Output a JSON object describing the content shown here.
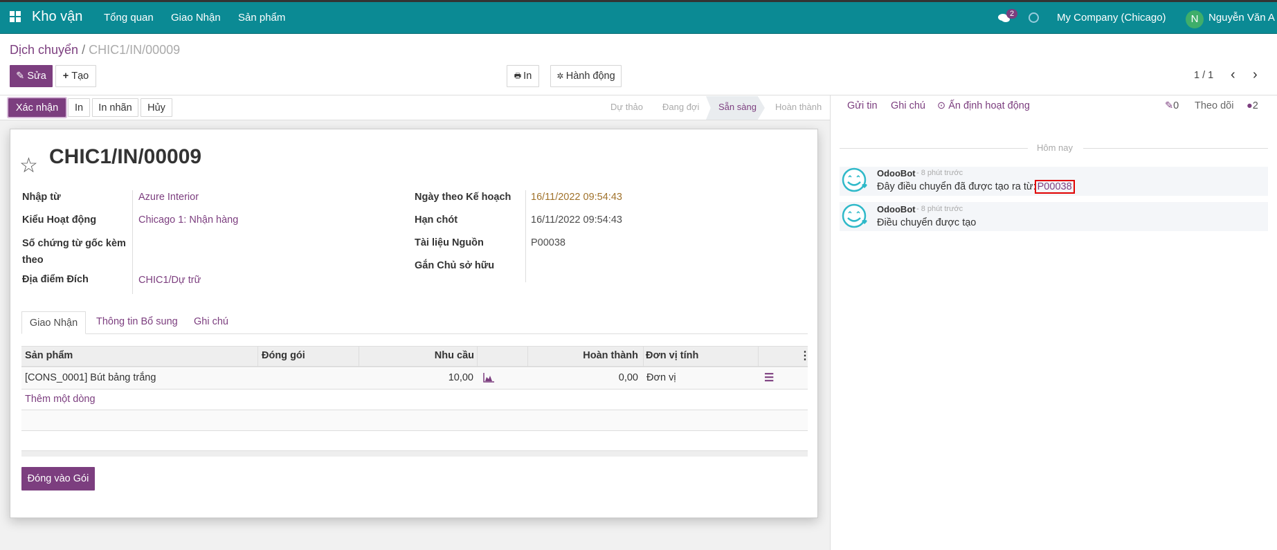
{
  "topbar": {
    "app_name": "Kho vận",
    "menu": [
      "Tổng quan",
      "Giao Nhận",
      "Sản phẩm"
    ],
    "messages_count": "2",
    "company": "My Company (Chicago)",
    "user_initial": "N",
    "user_name": "Nguyễn Văn A"
  },
  "breadcrumb": {
    "parent": "Dịch chuyển",
    "separator": "/",
    "current": "CHIC1/IN/00009"
  },
  "control": {
    "edit": "Sửa",
    "create": "Tạo",
    "print": "In",
    "action": "Hành động",
    "pager": "1 / 1"
  },
  "statusbar": {
    "buttons": [
      "Xác nhận",
      "In",
      "In nhãn",
      "Hủy"
    ],
    "stages": [
      "Dự thảo",
      "Đang đợi",
      "Sẵn sàng",
      "Hoàn thành"
    ],
    "active_stage": "Sẵn sàng"
  },
  "form": {
    "title": "CHIC1/IN/00009",
    "left_fields": [
      {
        "label": "Nhập từ",
        "value": "Azure Interior"
      },
      {
        "label": "Kiểu Hoạt động",
        "value": "Chicago 1: Nhận hàng"
      },
      {
        "label": "Số chứng từ gốc kèm theo",
        "value": ""
      },
      {
        "label": "Địa điểm Đích",
        "value": "CHIC1/Dự trữ"
      }
    ],
    "right_fields": [
      {
        "label": "Ngày theo Kế hoạch",
        "value": "16/11/2022 09:54:43"
      },
      {
        "label": "Hạn chót",
        "value": "16/11/2022 09:54:43"
      },
      {
        "label": "Tài liệu Nguồn",
        "value": "P00038"
      },
      {
        "label": "Gắn Chủ sở hữu",
        "value": ""
      }
    ],
    "tabs": [
      "Giao Nhận",
      "Thông tin Bổ sung",
      "Ghi chú"
    ],
    "table": {
      "headers": [
        "Sản phẩm",
        "Đóng gói",
        "Nhu cầu",
        "",
        "Hoàn thành",
        "Đơn vị tính"
      ],
      "rows": [
        {
          "product": "[CONS_0001] Bút bảng trắng",
          "package": "",
          "demand": "10,00",
          "done": "0,00",
          "uom": "Đơn vị"
        }
      ],
      "add_line": "Thêm một dòng"
    },
    "pack_button": "Đóng vào Gói"
  },
  "chatter": {
    "send": "Gửi tin",
    "note": "Ghi chú",
    "schedule": "Ấn định hoạt động",
    "attachments": "0",
    "follow": "Theo dõi",
    "followers": "2",
    "date_sep": "Hôm nay",
    "messages": [
      {
        "author": "OdooBot",
        "time": "- 8 phút trước",
        "body": "Đây điều chuyển đã được tạo ra từ:",
        "link": "P00038"
      },
      {
        "author": "OdooBot",
        "time": "- 8 phút trước",
        "body": "Điều chuyển được tạo",
        "link": ""
      }
    ]
  },
  "colors": {
    "topbar": "#0b8a94",
    "primary": "#7c3e7f",
    "highlight": "#e00000"
  }
}
